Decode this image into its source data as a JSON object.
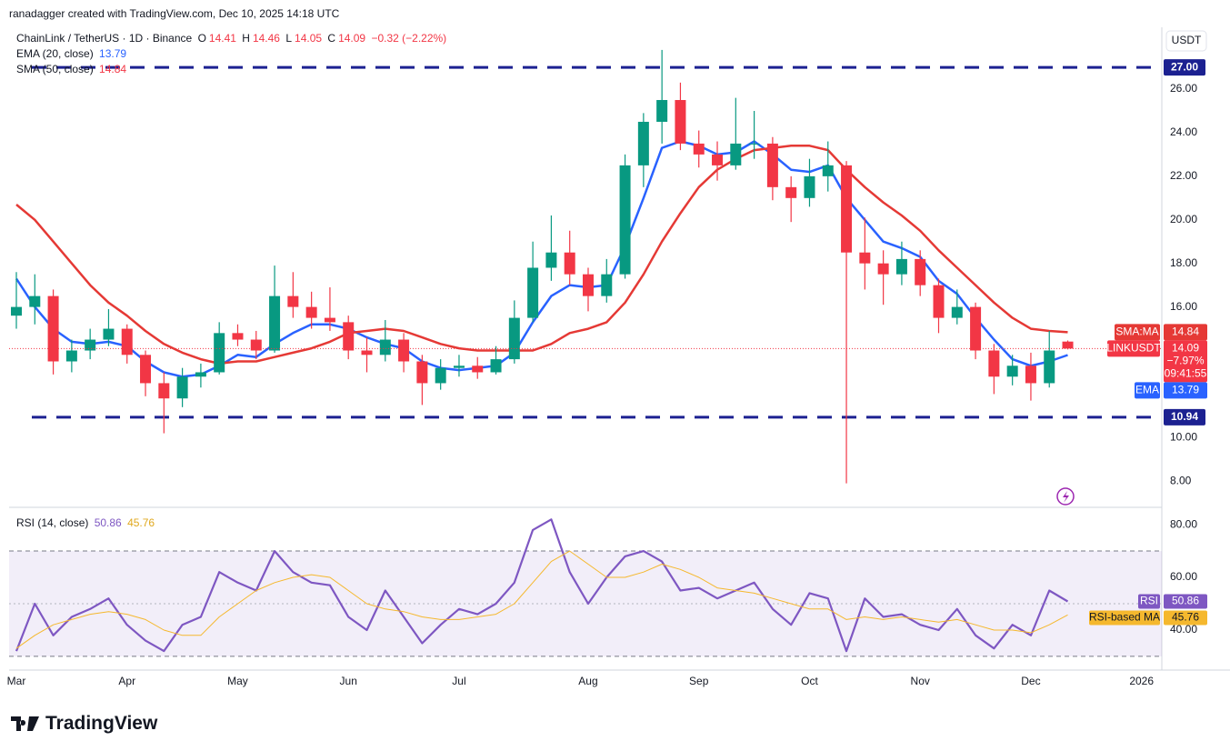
{
  "header": {
    "attribution": "ranadagger created with TradingView.com, Dec 10, 2025 14:18 UTC",
    "logo": "TradingView"
  },
  "chart_data": {
    "type": "candlestick",
    "title": "ChainLink / TetherUS · 1D · Binance",
    "ohlc_letters": [
      "O",
      "H",
      "L",
      "C"
    ],
    "change": "−0.32 (−2.22%)",
    "currency": "USDT",
    "symbol": "LINKUSDT",
    "change_percent": "−7.97%",
    "countdown": "09:41:55",
    "categories": [
      "Mar",
      null,
      null,
      null,
      null,
      null,
      "Apr",
      null,
      null,
      null,
      null,
      null,
      "May",
      null,
      null,
      null,
      null,
      null,
      "Jun",
      null,
      null,
      null,
      null,
      null,
      "Jul",
      null,
      null,
      null,
      null,
      null,
      null,
      "Aug",
      null,
      null,
      null,
      null,
      null,
      "Sep",
      null,
      null,
      null,
      null,
      null,
      "Oct",
      null,
      null,
      null,
      null,
      null,
      "Nov",
      null,
      null,
      null,
      null,
      null,
      "Dec",
      null,
      null,
      null,
      null,
      null,
      "2026"
    ],
    "open": [
      15.6,
      16.0,
      16.5,
      13.5,
      14.0,
      14.5,
      15.0,
      13.8,
      12.5,
      11.8,
      12.8,
      13.0,
      14.8,
      14.5,
      14.0,
      16.5,
      16.0,
      15.5,
      15.3,
      14.0,
      13.8,
      14.5,
      13.5,
      12.5,
      13.2,
      13.3,
      13.0,
      13.6,
      15.5,
      17.8,
      18.5,
      17.5,
      16.5,
      17.5,
      22.5,
      24.5,
      25.5,
      23.5,
      23.0,
      22.5,
      23.5,
      23.5,
      21.5,
      21.0,
      22.0,
      22.5,
      18.5,
      18.0,
      17.5,
      18.2,
      17.0,
      15.5,
      16.0,
      14.0,
      12.8,
      13.3,
      12.5,
      14.41,
      null,
      null,
      null,
      null
    ],
    "high": [
      17.6,
      17.5,
      16.8,
      14.5,
      15.0,
      15.9,
      15.2,
      14.0,
      13.0,
      13.2,
      13.4,
      15.3,
      15.2,
      14.9,
      17.9,
      17.6,
      16.7,
      16.9,
      15.6,
      14.6,
      15.4,
      14.8,
      13.8,
      13.6,
      13.8,
      13.7,
      14.2,
      16.3,
      19.0,
      20.2,
      19.5,
      17.8,
      18.2,
      23.0,
      24.9,
      27.8,
      26.3,
      24.1,
      23.6,
      25.6,
      25.0,
      23.8,
      22.0,
      22.8,
      23.6,
      22.7,
      20.1,
      18.6,
      19.0,
      18.6,
      17.3,
      16.8,
      16.2,
      14.3,
      13.8,
      13.9,
      14.9,
      14.46,
      null,
      null,
      null,
      null
    ],
    "low": [
      15.0,
      15.2,
      12.9,
      13.0,
      13.6,
      14.2,
      13.4,
      11.9,
      10.2,
      11.4,
      12.3,
      12.9,
      14.2,
      13.6,
      13.9,
      15.5,
      15.0,
      14.9,
      13.6,
      13.0,
      13.5,
      13.0,
      11.5,
      12.2,
      12.8,
      12.7,
      12.9,
      13.4,
      15.3,
      17.2,
      17.0,
      15.8,
      16.2,
      17.3,
      21.5,
      23.5,
      23.2,
      22.4,
      21.8,
      22.3,
      22.8,
      20.9,
      19.9,
      20.6,
      21.3,
      7.9,
      16.8,
      16.1,
      17.0,
      16.5,
      14.8,
      15.2,
      13.6,
      12.0,
      12.4,
      11.7,
      12.3,
      14.05,
      null,
      null,
      null,
      null
    ],
    "close": [
      16.0,
      16.5,
      13.5,
      14.0,
      14.5,
      15.0,
      13.8,
      12.5,
      11.8,
      12.8,
      13.0,
      14.8,
      14.5,
      14.0,
      16.5,
      16.0,
      15.5,
      15.3,
      14.0,
      13.8,
      14.5,
      13.5,
      12.5,
      13.2,
      13.3,
      13.0,
      13.6,
      15.5,
      17.8,
      18.5,
      17.5,
      16.5,
      17.5,
      22.5,
      24.5,
      25.5,
      23.5,
      23.0,
      22.5,
      23.5,
      23.5,
      21.5,
      21.0,
      22.0,
      22.5,
      18.5,
      18.0,
      17.5,
      18.2,
      17.0,
      15.5,
      16.0,
      14.0,
      12.8,
      13.3,
      12.5,
      14.0,
      14.09,
      null,
      null,
      null,
      null
    ],
    "up_color": "#089981",
    "down_color": "#f23645",
    "series": [
      {
        "name": "EMA (20, close)",
        "tag": "EMA",
        "color": "#2962ff",
        "values": [
          17.3,
          16.0,
          15.0,
          14.4,
          14.3,
          14.4,
          14.2,
          13.5,
          13.0,
          12.8,
          12.9,
          13.3,
          13.8,
          13.7,
          14.3,
          14.8,
          15.2,
          15.2,
          15.0,
          14.6,
          14.3,
          14.1,
          13.5,
          13.2,
          13.1,
          13.2,
          13.3,
          13.9,
          15.3,
          16.5,
          17.0,
          16.9,
          17.0,
          18.8,
          21.0,
          23.3,
          23.6,
          23.4,
          23.0,
          23.1,
          23.6,
          23.0,
          22.3,
          22.2,
          22.5,
          21.0,
          20.0,
          19.0,
          18.7,
          18.3,
          17.2,
          16.6,
          15.5,
          14.5,
          13.6,
          13.3,
          13.5,
          13.79,
          null,
          null,
          null,
          null
        ]
      },
      {
        "name": "SMA (50, close)",
        "tag": "SMA:MA",
        "color": "#e53935",
        "values": [
          20.7,
          20.0,
          19.0,
          18.0,
          17.0,
          16.2,
          15.6,
          14.9,
          14.3,
          13.9,
          13.6,
          13.4,
          13.5,
          13.5,
          13.7,
          13.9,
          14.1,
          14.4,
          14.8,
          14.9,
          15.0,
          14.9,
          14.6,
          14.3,
          14.1,
          14.0,
          14.0,
          14.0,
          14.0,
          14.3,
          14.8,
          15.0,
          15.3,
          16.2,
          17.5,
          19.0,
          20.3,
          21.5,
          22.3,
          22.8,
          23.2,
          23.3,
          23.4,
          23.4,
          23.2,
          22.3,
          21.5,
          20.8,
          20.2,
          19.5,
          18.6,
          17.8,
          17.0,
          16.2,
          15.5,
          15.0,
          14.9,
          14.84,
          null,
          null,
          null,
          null
        ]
      }
    ],
    "ylim": [
      6.8,
      28.84
    ],
    "yticks": [
      {
        "value": 8,
        "label": "8.00"
      },
      {
        "value": 10,
        "label": "10.00"
      },
      {
        "value": 12,
        "label": "12.00"
      },
      {
        "value": 14,
        "label": "14.00"
      },
      {
        "value": 16,
        "label": "16.00"
      },
      {
        "value": 18,
        "label": "18.00"
      },
      {
        "value": 20,
        "label": "20.00"
      },
      {
        "value": 22,
        "label": "22.00"
      },
      {
        "value": 24,
        "label": "24.00"
      },
      {
        "value": 26,
        "label": "26.00"
      }
    ],
    "levels": [
      {
        "value": 27,
        "label": "27.00"
      },
      {
        "value": 10.94,
        "label": "10.94"
      }
    ],
    "level_color": "#1c2191",
    "rsi": {
      "type": "line",
      "title": "RSI (14, close)",
      "ylim": [
        24.8,
        85.9
      ],
      "yticks": [
        {
          "value": 40,
          "label": "40.00"
        },
        {
          "value": 60,
          "label": "60.00"
        },
        {
          "value": 80,
          "label": "80.00"
        }
      ],
      "bands": [
        30,
        70
      ],
      "midline": 50,
      "series": [
        {
          "name": "RSI",
          "color": "#7e57c2",
          "values": [
            32,
            50,
            38,
            45,
            48,
            52,
            42,
            36,
            32,
            42,
            45,
            62,
            58,
            55,
            70,
            62,
            58,
            57,
            45,
            40,
            55,
            45,
            35,
            42,
            48,
            46,
            50,
            58,
            78,
            82,
            62,
            50,
            60,
            68,
            70,
            66,
            55,
            56,
            52,
            55,
            58,
            48,
            42,
            54,
            52,
            32,
            52,
            45,
            46,
            42,
            40,
            48,
            38,
            33,
            42,
            38,
            55,
            50.86,
            null,
            null,
            null,
            null
          ]
        },
        {
          "name": "RSI-based MA",
          "color": "#f5b82e",
          "values": [
            33,
            38,
            42,
            44,
            46,
            47,
            46,
            44,
            40,
            38,
            38,
            45,
            50,
            55,
            58,
            60,
            61,
            60,
            55,
            50,
            48,
            47,
            45,
            44,
            44,
            45,
            46,
            50,
            58,
            66,
            70,
            65,
            60,
            60,
            62,
            65,
            63,
            60,
            56,
            55,
            54,
            52,
            50,
            48,
            48,
            44,
            45,
            44,
            45,
            44,
            43,
            44,
            42,
            40,
            40,
            39,
            42,
            45.76,
            null,
            null,
            null,
            null
          ]
        }
      ]
    }
  }
}
